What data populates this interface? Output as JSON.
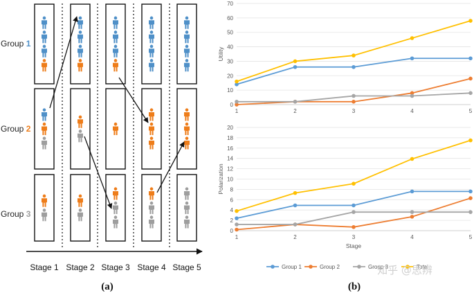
{
  "panel_a": {
    "group_labels": [
      "Group ",
      "Group ",
      "Group "
    ],
    "group_numbers": [
      "1",
      "2",
      "3"
    ],
    "stage_labels": [
      "Stage 1",
      "Stage 2",
      "Stage 3",
      "Stage 4",
      "Stage 5"
    ],
    "caption": "(a)",
    "box_people": [
      [
        [
          "blue",
          "blue",
          "blue",
          "orange"
        ],
        [
          "blue",
          "orange",
          "gray"
        ],
        [
          "orange",
          "gray"
        ]
      ],
      [
        [
          "blue",
          "blue",
          "blue",
          "orange"
        ],
        [
          "orange",
          "gray"
        ],
        [
          "orange",
          "gray"
        ]
      ],
      [
        [
          "blue",
          "blue",
          "blue",
          "orange"
        ],
        [
          "orange"
        ],
        [
          "orange",
          "gray",
          "gray"
        ]
      ],
      [
        [
          "blue",
          "blue",
          "blue",
          "blue"
        ],
        [
          "orange",
          "orange",
          "orange"
        ],
        [
          "orange",
          "gray",
          "gray"
        ]
      ],
      [
        [
          "blue",
          "blue",
          "blue",
          "blue"
        ],
        [
          "orange",
          "orange",
          "orange"
        ],
        [
          "gray",
          "gray",
          "gray"
        ]
      ]
    ]
  },
  "panel_b_caption": "(b)",
  "colors": {
    "group1": "#5b9bd5",
    "group2": "#ed7d31",
    "group3": "#a5a5a5",
    "total": "#ffc000",
    "person_blue": "#4f90c8",
    "person_orange": "#ee7d1a",
    "person_gray": "#9e9e9e"
  },
  "chart_data": [
    {
      "type": "line",
      "title": "",
      "xlabel": "",
      "ylabel": "Utility",
      "categories": [
        "1",
        "2",
        "3",
        "4",
        "5"
      ],
      "ylim": [
        0,
        70
      ],
      "yticks": [
        0,
        10,
        20,
        30,
        40,
        50,
        60,
        70
      ],
      "grid": true,
      "series": [
        {
          "name": "Group 1",
          "values": [
            14,
            26,
            26,
            32,
            32
          ]
        },
        {
          "name": "Group 2",
          "values": [
            0,
            2,
            2,
            8,
            18
          ]
        },
        {
          "name": "Group 3",
          "values": [
            2,
            2,
            6,
            6,
            8
          ]
        },
        {
          "name": "Total",
          "values": [
            16,
            30,
            34,
            46,
            58
          ]
        }
      ]
    },
    {
      "type": "line",
      "title": "",
      "xlabel": "Stage",
      "ylabel": "Polarization",
      "categories": [
        "1",
        "2",
        "3",
        "4",
        "5"
      ],
      "ylim": [
        0,
        20
      ],
      "yticks": [
        0,
        2,
        4,
        6,
        8,
        10,
        12,
        14,
        16,
        18,
        20
      ],
      "grid": true,
      "series": [
        {
          "name": "Group 1",
          "values": [
            2.4,
            4.9,
            4.9,
            7.6,
            7.6
          ]
        },
        {
          "name": "Group 2",
          "values": [
            0.2,
            1.2,
            0.7,
            2.7,
            6.3
          ]
        },
        {
          "name": "Group 3",
          "values": [
            1.2,
            1.2,
            3.6,
            3.6,
            3.6
          ]
        },
        {
          "name": "Total",
          "values": [
            3.8,
            7.3,
            9.1,
            13.9,
            17.5
          ]
        }
      ]
    }
  ],
  "legend": [
    "Group 1",
    "Group 2",
    "Group 3",
    "Total"
  ],
  "watermark": "知乎 @思辨"
}
